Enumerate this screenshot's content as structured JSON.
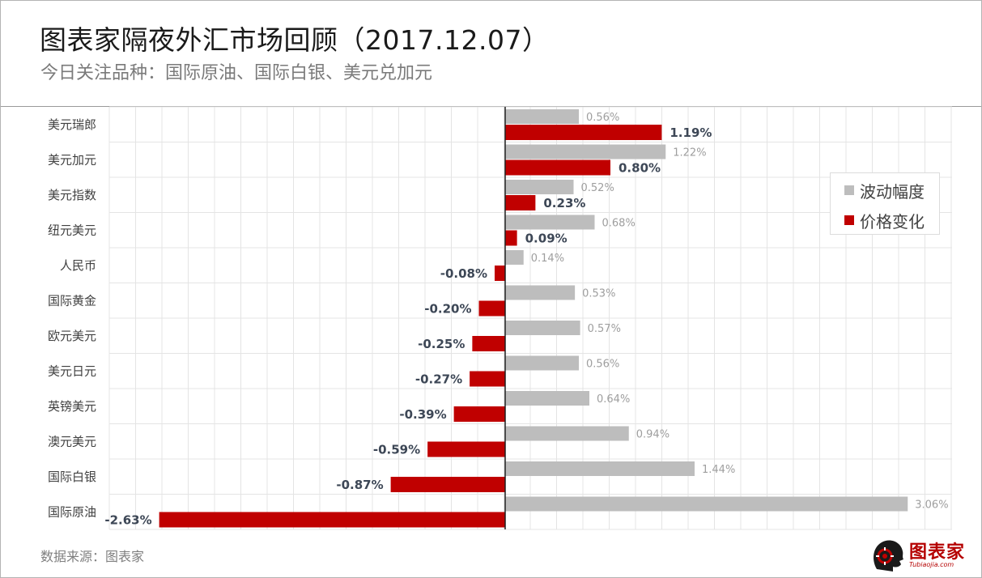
{
  "title": "图表家隔夜外汇市场回顾（2017.12.07）",
  "subtitle": "今日关注品种：国际原油、国际白银、美元兑加元",
  "source": "数据来源：图表家",
  "logo": {
    "text": "图表家",
    "sub": "Tubiaojia.com"
  },
  "colors": {
    "volatility": "#bdbdbd",
    "change": "#c00000",
    "axis": "#1f1f1f",
    "grid": "#e4e4e4"
  },
  "chart_data": {
    "type": "bar",
    "orientation": "horizontal",
    "categories": [
      "美元瑞郎",
      "美元加元",
      "美元指数",
      "纽元美元",
      "人民币",
      "国际黄金",
      "欧元美元",
      "美元日元",
      "英镑美元",
      "澳元美元",
      "国际白银",
      "国际原油"
    ],
    "series": [
      {
        "name": "波动幅度",
        "values": [
          0.56,
          1.22,
          0.52,
          0.68,
          0.14,
          0.53,
          0.57,
          0.56,
          0.64,
          0.94,
          1.44,
          3.06
        ],
        "labels": [
          "0.56%",
          "1.22%",
          "0.52%",
          "0.68%",
          "0.14%",
          "0.53%",
          "0.57%",
          "0.56%",
          "0.64%",
          "0.94%",
          "1.44%",
          "3.06%"
        ]
      },
      {
        "name": "价格变化",
        "values": [
          1.19,
          0.8,
          0.23,
          0.09,
          -0.08,
          -0.2,
          -0.25,
          -0.27,
          -0.39,
          -0.59,
          -0.87,
          -2.63
        ],
        "labels": [
          "1.19%",
          "0.80%",
          "0.23%",
          "0.09%",
          "-0.08%",
          "-0.20%",
          "-0.25%",
          "-0.27%",
          "-0.39%",
          "-0.59%",
          "-0.87%",
          "-2.63%"
        ]
      }
    ],
    "xlim": [
      -3.0,
      3.4
    ],
    "grid": true,
    "legend_position": "right"
  }
}
